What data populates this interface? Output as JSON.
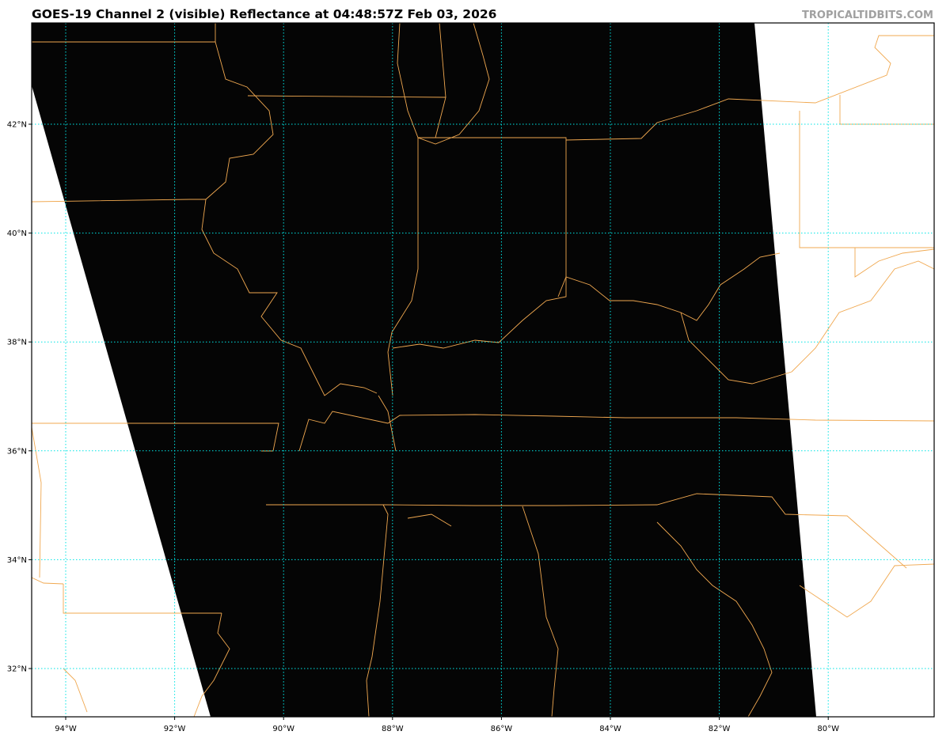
{
  "header": {
    "title": "GOES-19 Channel 2 (visible) Reflectance at 04:48:57Z Feb 03, 2026",
    "credit": "TROPICALTIDBITS.COM"
  },
  "map": {
    "satellite": "GOES-19",
    "channel": "Channel 2 (visible)",
    "product": "Reflectance",
    "extent": {
      "lon_min": -94.6,
      "lon_max": -78.1,
      "lat_min": 31.1,
      "lat_max": 43.8
    },
    "lon_ticks": [
      {
        "value": -94,
        "label": "94°W"
      },
      {
        "value": -92,
        "label": "92°W"
      },
      {
        "value": -90,
        "label": "90°W"
      },
      {
        "value": -88,
        "label": "88°W"
      },
      {
        "value": -86,
        "label": "86°W"
      },
      {
        "value": -84,
        "label": "84°W"
      },
      {
        "value": -82,
        "label": "82°W"
      },
      {
        "value": -80,
        "label": "80°W"
      }
    ],
    "lat_ticks": [
      {
        "value": 42,
        "label": "42°N"
      },
      {
        "value": 40,
        "label": "40°N"
      },
      {
        "value": 38,
        "label": "38°N"
      },
      {
        "value": 36,
        "label": "36°N"
      },
      {
        "value": 34,
        "label": "34°N"
      },
      {
        "value": 32,
        "label": "32°N"
      }
    ],
    "colors": {
      "imagery": "#050505",
      "nodata": "#ffffff",
      "borders": "#f0a850",
      "gridlines": "#00e5e5"
    }
  }
}
